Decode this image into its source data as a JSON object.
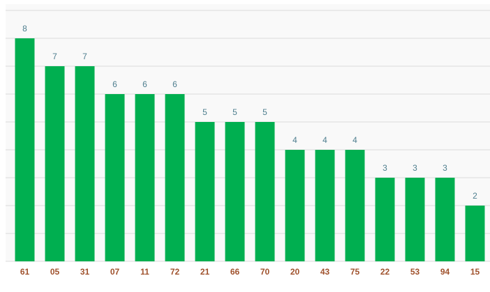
{
  "chart_data": {
    "type": "bar",
    "categories": [
      "61",
      "05",
      "31",
      "07",
      "11",
      "72",
      "21",
      "66",
      "70",
      "20",
      "43",
      "75",
      "22",
      "53",
      "94",
      "15"
    ],
    "values": [
      8,
      7,
      7,
      6,
      6,
      6,
      5,
      5,
      5,
      4,
      4,
      4,
      3,
      3,
      3,
      2
    ],
    "color": "#00af50",
    "ylim": [
      0,
      9
    ],
    "yticks": [
      0,
      1,
      2,
      3,
      4,
      5,
      6,
      7,
      8,
      9
    ],
    "grid": true
  }
}
